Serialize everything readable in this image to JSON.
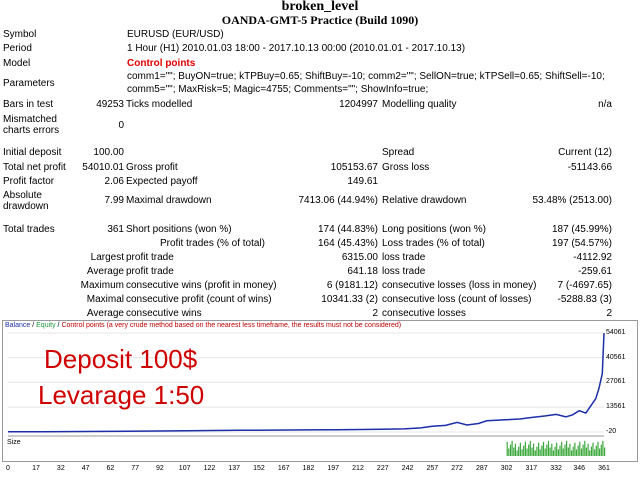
{
  "title": "broken_level",
  "subtitle": "OANDA-GMT-5 Practice (Build 1090)",
  "report": {
    "symbol_label": "Symbol",
    "symbol": "EURUSD (EUR/USD)",
    "period_label": "Period",
    "period": "1 Hour (H1) 2010.01.03 18:00 - 2017.10.13 00:00 (2010.01.01 - 2017.10.13)",
    "model_label": "Model",
    "model": "Control points",
    "parameters_label": "Parameters",
    "parameters_line1": "comm1=\"\"; BuyON=true; kTPBuy=0.65; ShiftBuy=-10; comm2=\"\"; SellON=true; kTPSell=0.65; ShiftSell=-10;",
    "parameters_line2": "comm5=\"\"; MaxRisk=5; Magic=4755; Comments=\"\"; ShowInfo=true;",
    "bars_label": "Bars in test",
    "bars": "49253",
    "ticks_label": "Ticks modelled",
    "ticks": "1204997",
    "quality_label": "Modelling quality",
    "quality": "n/a",
    "mismatch_label_1": "Mismatched",
    "mismatch_label_2": "charts errors",
    "mismatch": "0",
    "deposit_label": "Initial deposit",
    "deposit": "100.00",
    "spread_label": "Spread",
    "spread": "Current (12)",
    "net_profit_label": "Total net profit",
    "net_profit": "54010.01",
    "gross_profit_label": "Gross profit",
    "gross_profit": "105153.67",
    "gross_loss_label": "Gross loss",
    "gross_loss": "-51143.66",
    "profit_factor_label": "Profit factor",
    "profit_factor": "2.06",
    "expected_payoff_label": "Expected payoff",
    "expected_payoff": "149.61",
    "abs_dd_label_1": "Absolute",
    "abs_dd_label_2": "drawdown",
    "abs_dd": "7.99",
    "max_dd_label": "Maximal drawdown",
    "max_dd": "7413.06 (44.94%)",
    "rel_dd_label": "Relative drawdown",
    "rel_dd": "53.48% (2513.00)",
    "total_trades_label": "Total trades",
    "total_trades": "361",
    "short_pos_label": "Short positions (won %)",
    "short_pos": "174 (44.83%)",
    "long_pos_label": "Long positions (won %)",
    "long_pos": "187 (45.99%)",
    "profit_trades_label": "Profit trades (% of total)",
    "profit_trades": "164 (45.43%)",
    "loss_trades_label": "Loss trades (% of total)",
    "loss_trades": "197 (54.57%)",
    "largest_label": "Largest",
    "largest_profit_label": "profit trade",
    "largest_profit": "6315.00",
    "largest_loss_label": "loss trade",
    "largest_loss": "-4112.92",
    "average_label": "Average",
    "average_profit_label": "profit trade",
    "average_profit": "641.18",
    "average_loss_label": "loss trade",
    "average_loss": "-259.61",
    "maximum_label": "Maximum",
    "max_cons_wins_label": "consecutive wins (profit in money)",
    "max_cons_wins": "6 (9181.12)",
    "max_cons_losses_label": "consecutive losses (loss in money)",
    "max_cons_losses": "7 (-4697.65)",
    "maximal_label": "Maximal",
    "maximal_cons_profit_label": "consecutive profit (count of wins)",
    "maximal_cons_profit": "10341.33 (2)",
    "maximal_cons_loss_label": "consecutive loss (count of losses)",
    "maximal_cons_loss": "-5288.83 (3)",
    "avg_cons_label": "Average",
    "avg_cons_wins_label": "consecutive wins",
    "avg_cons_wins": "2",
    "avg_cons_losses_label": "consecutive losses",
    "avg_cons_losses": "2"
  },
  "chart_legend": {
    "balance": "Balance",
    "sep1": " / ",
    "equity": "Equity",
    "sep2": " / ",
    "control_points": "Control points (a very crude method based on the nearest less timeframe, the results must not be considered)"
  },
  "overlay": {
    "line1": "Deposit 100$",
    "line2": "Levarage 1:50"
  },
  "size_label": "Size",
  "colors": {
    "balance": "#1c2ea8",
    "equity": "#1c9a3a",
    "overlay_text": "#d00000",
    "size_bars": "#3aa83a"
  },
  "chart_data": {
    "type": "line",
    "title": "",
    "xlabel": "",
    "ylabel": "",
    "ylim": [
      -20,
      54061
    ],
    "y_ticks": [
      "54061",
      "40561",
      "27061",
      "13561",
      "-20"
    ],
    "x_ticks": [
      "0",
      "17",
      "32",
      "47",
      "62",
      "77",
      "92",
      "107",
      "122",
      "137",
      "152",
      "167",
      "182",
      "197",
      "212",
      "227",
      "242",
      "257",
      "272",
      "287",
      "302",
      "317",
      "332",
      "346",
      "361"
    ],
    "series": [
      {
        "name": "Balance",
        "x": [
          0,
          20,
          60,
          100,
          140,
          180,
          200,
          220,
          240,
          250,
          257,
          265,
          272,
          278,
          285,
          290,
          300,
          310,
          317,
          325,
          332,
          338,
          342,
          346,
          350,
          353,
          356,
          358,
          360,
          361
        ],
        "y": [
          100,
          150,
          300,
          600,
          900,
          1100,
          1250,
          1400,
          1650,
          2200,
          3100,
          3600,
          5200,
          3800,
          4600,
          6100,
          6600,
          7100,
          7900,
          8700,
          9600,
          8300,
          9400,
          11600,
          10300,
          14300,
          18100,
          23900,
          31900,
          54010
        ]
      }
    ],
    "size_histogram": {
      "description_levels": "bar heights relative to panel",
      "x_start": 302,
      "x_end": 361
    }
  }
}
